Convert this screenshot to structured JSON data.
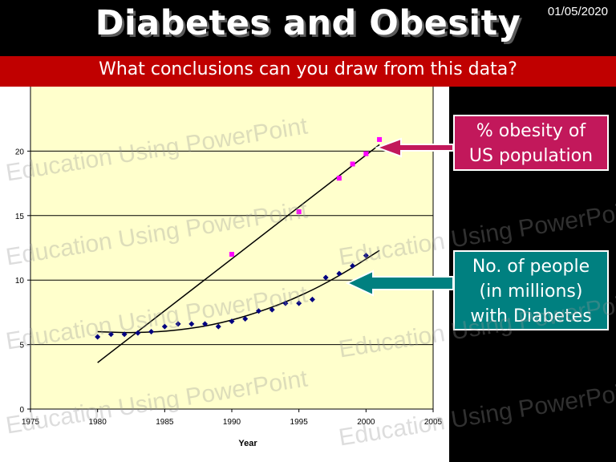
{
  "slide": {
    "title": "Diabetes and Obesity",
    "date": "01/05/2020",
    "question": "What conclusions can you draw from this data?",
    "callout_obesity": [
      "% obesity of",
      "US population"
    ],
    "callout_diabetes": [
      "No. of people",
      "(in millions)",
      "with Diabetes"
    ],
    "watermark_text": "Education Using PowerPoint"
  },
  "colors": {
    "background": "#000000",
    "banner": "#c00000",
    "plot_background": "#ffffcc",
    "obesity_marker": "#ff00ff",
    "diabetes_marker": "#000080",
    "obesity_callout": "#c2185b",
    "diabetes_callout": "#008080"
  },
  "chart_data": {
    "type": "scatter",
    "title": "",
    "xlabel": "Year",
    "ylabel": "",
    "xlim": [
      1975,
      2005
    ],
    "ylim": [
      0,
      25
    ],
    "xticks": [
      1975,
      1980,
      1985,
      1990,
      1995,
      2000,
      2005
    ],
    "yticks": [
      0,
      5,
      10,
      15,
      20
    ],
    "grid": "horizontal",
    "series": [
      {
        "marker": "square",
        "color": "#ff00ff",
        "x": [
          1990,
          1995,
          1998,
          1999,
          2000,
          2001
        ],
        "y": [
          12.0,
          15.3,
          17.9,
          19.0,
          19.8,
          20.9
        ],
        "trend": "linear",
        "trend_x": [
          1980,
          2001
        ],
        "trend_y": [
          3.6,
          20.5
        ]
      },
      {
        "marker": "diamond",
        "color": "#000080",
        "x": [
          1980,
          1981,
          1982,
          1983,
          1984,
          1985,
          1986,
          1987,
          1988,
          1989,
          1990,
          1991,
          1992,
          1993,
          1994,
          1995,
          1996,
          1997,
          1998,
          1999,
          2000
        ],
        "y": [
          5.6,
          5.8,
          5.8,
          5.9,
          6.0,
          6.4,
          6.6,
          6.6,
          6.6,
          6.4,
          6.8,
          7.0,
          7.6,
          7.7,
          8.2,
          8.2,
          8.5,
          10.2,
          10.5,
          11.1,
          11.9
        ],
        "trend": "polynomial",
        "trend_x": [
          1980,
          1983,
          1986,
          1989,
          1992,
          1995,
          1998,
          2001
        ],
        "trend_y": [
          6.0,
          5.9,
          6.1,
          6.6,
          7.5,
          8.7,
          10.3,
          12.3
        ]
      }
    ]
  }
}
